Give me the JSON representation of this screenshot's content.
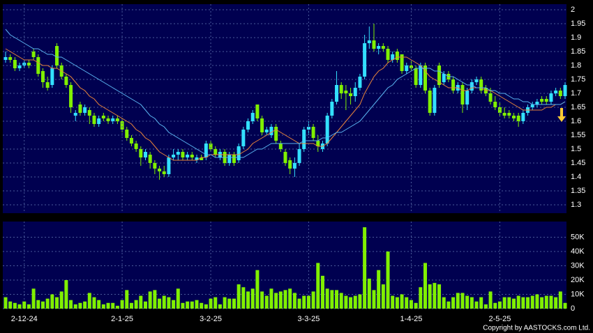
{
  "chart_data": [
    {
      "type": "candlestick",
      "up_color": "#33e0ff",
      "down_color": "#80f000",
      "grid": true,
      "ylim": [
        1.27,
        2.02
      ],
      "yticks": [
        1.3,
        1.35,
        1.4,
        1.45,
        1.5,
        1.55,
        1.6,
        1.65,
        1.7,
        1.75,
        1.8,
        1.85,
        1.9,
        1.95,
        2
      ],
      "ohlc": [
        [
          1.82,
          1.85,
          1.81,
          1.83
        ],
        [
          1.83,
          1.84,
          1.81,
          1.82
        ],
        [
          1.82,
          1.83,
          1.78,
          1.79
        ],
        [
          1.79,
          1.81,
          1.78,
          1.8
        ],
        [
          1.8,
          1.82,
          1.79,
          1.81
        ],
        [
          1.81,
          1.82,
          1.79,
          1.8
        ],
        [
          1.85,
          1.86,
          1.82,
          1.83
        ],
        [
          1.83,
          1.84,
          1.76,
          1.77
        ],
        [
          1.78,
          1.79,
          1.72,
          1.74
        ],
        [
          1.74,
          1.76,
          1.71,
          1.72
        ],
        [
          1.73,
          1.8,
          1.72,
          1.79
        ],
        [
          1.87,
          1.88,
          1.79,
          1.8
        ],
        [
          1.8,
          1.81,
          1.75,
          1.76
        ],
        [
          1.76,
          1.77,
          1.72,
          1.73
        ],
        [
          1.73,
          1.74,
          1.63,
          1.65
        ],
        [
          1.62,
          1.64,
          1.6,
          1.63
        ],
        [
          1.66,
          1.67,
          1.62,
          1.63
        ],
        [
          1.63,
          1.66,
          1.62,
          1.65
        ],
        [
          1.64,
          1.65,
          1.59,
          1.62
        ],
        [
          1.62,
          1.63,
          1.58,
          1.59
        ],
        [
          1.59,
          1.62,
          1.58,
          1.61
        ],
        [
          1.62,
          1.63,
          1.6,
          1.61
        ],
        [
          1.61,
          1.62,
          1.59,
          1.6
        ],
        [
          1.6,
          1.62,
          1.59,
          1.61
        ],
        [
          1.61,
          1.62,
          1.59,
          1.6
        ],
        [
          1.6,
          1.61,
          1.56,
          1.57
        ],
        [
          1.57,
          1.58,
          1.53,
          1.54
        ],
        [
          1.54,
          1.55,
          1.51,
          1.52
        ],
        [
          1.52,
          1.53,
          1.49,
          1.5
        ],
        [
          1.5,
          1.51,
          1.44,
          1.47
        ],
        [
          1.47,
          1.5,
          1.46,
          1.49
        ],
        [
          1.48,
          1.49,
          1.43,
          1.45
        ],
        [
          1.45,
          1.46,
          1.41,
          1.43
        ],
        [
          1.43,
          1.44,
          1.39,
          1.42
        ],
        [
          1.42,
          1.44,
          1.4,
          1.41
        ],
        [
          1.41,
          1.48,
          1.4,
          1.47
        ],
        [
          1.47,
          1.5,
          1.46,
          1.48
        ],
        [
          1.48,
          1.5,
          1.46,
          1.49
        ],
        [
          1.49,
          1.5,
          1.46,
          1.47
        ],
        [
          1.47,
          1.49,
          1.46,
          1.48
        ],
        [
          1.48,
          1.49,
          1.46,
          1.47
        ],
        [
          1.46,
          1.48,
          1.45,
          1.47
        ],
        [
          1.47,
          1.48,
          1.46,
          1.46
        ],
        [
          1.47,
          1.53,
          1.46,
          1.52
        ],
        [
          1.52,
          1.53,
          1.49,
          1.5
        ],
        [
          1.5,
          1.51,
          1.47,
          1.48
        ],
        [
          1.47,
          1.5,
          1.46,
          1.49
        ],
        [
          1.49,
          1.5,
          1.44,
          1.45
        ],
        [
          1.45,
          1.49,
          1.44,
          1.48
        ],
        [
          1.48,
          1.49,
          1.44,
          1.45
        ],
        [
          1.46,
          1.52,
          1.45,
          1.51
        ],
        [
          1.51,
          1.58,
          1.5,
          1.57
        ],
        [
          1.57,
          1.61,
          1.56,
          1.6
        ],
        [
          1.6,
          1.64,
          1.59,
          1.63
        ],
        [
          1.66,
          1.66,
          1.6,
          1.61
        ],
        [
          1.61,
          1.62,
          1.55,
          1.56
        ],
        [
          1.56,
          1.58,
          1.55,
          1.57
        ],
        [
          1.55,
          1.59,
          1.54,
          1.58
        ],
        [
          1.58,
          1.59,
          1.52,
          1.53
        ],
        [
          1.52,
          1.53,
          1.49,
          1.5
        ],
        [
          1.49,
          1.5,
          1.44,
          1.45
        ],
        [
          1.46,
          1.47,
          1.41,
          1.43
        ],
        [
          1.43,
          1.47,
          1.4,
          1.45
        ],
        [
          1.45,
          1.52,
          1.44,
          1.5
        ],
        [
          1.5,
          1.58,
          1.49,
          1.57
        ],
        [
          1.57,
          1.6,
          1.55,
          1.58
        ],
        [
          1.58,
          1.59,
          1.53,
          1.54
        ],
        [
          1.53,
          1.55,
          1.49,
          1.51
        ],
        [
          1.5,
          1.53,
          1.49,
          1.52
        ],
        [
          1.52,
          1.63,
          1.51,
          1.62
        ],
        [
          1.62,
          1.68,
          1.61,
          1.67
        ],
        [
          1.67,
          1.78,
          1.66,
          1.73
        ],
        [
          1.73,
          1.74,
          1.68,
          1.7
        ],
        [
          1.71,
          1.73,
          1.64,
          1.7
        ],
        [
          1.7,
          1.72,
          1.66,
          1.69
        ],
        [
          1.69,
          1.74,
          1.67,
          1.72
        ],
        [
          1.72,
          1.77,
          1.71,
          1.76
        ],
        [
          1.76,
          1.91,
          1.75,
          1.88
        ],
        [
          1.88,
          1.94,
          1.86,
          1.89
        ],
        [
          1.89,
          1.95,
          1.85,
          1.86
        ],
        [
          1.86,
          1.88,
          1.84,
          1.87
        ],
        [
          1.87,
          1.88,
          1.85,
          1.86
        ],
        [
          1.86,
          1.87,
          1.81,
          1.82
        ],
        [
          1.82,
          1.85,
          1.81,
          1.84
        ],
        [
          1.85,
          1.86,
          1.81,
          1.82
        ],
        [
          1.84,
          1.84,
          1.77,
          1.78
        ],
        [
          1.78,
          1.81,
          1.77,
          1.8
        ],
        [
          1.8,
          1.82,
          1.78,
          1.79
        ],
        [
          1.79,
          1.8,
          1.72,
          1.73
        ],
        [
          1.73,
          1.81,
          1.72,
          1.8
        ],
        [
          1.8,
          1.81,
          1.7,
          1.71
        ],
        [
          1.71,
          1.72,
          1.62,
          1.63
        ],
        [
          1.63,
          1.73,
          1.62,
          1.72
        ],
        [
          1.8,
          1.81,
          1.72,
          1.73
        ],
        [
          1.74,
          1.78,
          1.73,
          1.77
        ],
        [
          1.77,
          1.78,
          1.74,
          1.75
        ],
        [
          1.75,
          1.76,
          1.7,
          1.71
        ],
        [
          1.71,
          1.74,
          1.7,
          1.73
        ],
        [
          1.73,
          1.74,
          1.63,
          1.66
        ],
        [
          1.66,
          1.72,
          1.64,
          1.71
        ],
        [
          1.71,
          1.75,
          1.7,
          1.74
        ],
        [
          1.74,
          1.76,
          1.73,
          1.75
        ],
        [
          1.75,
          1.76,
          1.7,
          1.71
        ],
        [
          1.72,
          1.73,
          1.69,
          1.7
        ],
        [
          1.7,
          1.72,
          1.66,
          1.67
        ],
        [
          1.67,
          1.69,
          1.64,
          1.65
        ],
        [
          1.65,
          1.67,
          1.62,
          1.63
        ],
        [
          1.63,
          1.65,
          1.61,
          1.62
        ],
        [
          1.63,
          1.64,
          1.61,
          1.62
        ],
        [
          1.62,
          1.63,
          1.6,
          1.61
        ],
        [
          1.62,
          1.63,
          1.58,
          1.6
        ],
        [
          1.6,
          1.64,
          1.59,
          1.63
        ],
        [
          1.63,
          1.66,
          1.62,
          1.65
        ],
        [
          1.65,
          1.67,
          1.64,
          1.66
        ],
        [
          1.66,
          1.68,
          1.65,
          1.67
        ],
        [
          1.68,
          1.69,
          1.66,
          1.67
        ],
        [
          1.68,
          1.69,
          1.66,
          1.67
        ],
        [
          1.67,
          1.71,
          1.66,
          1.7
        ],
        [
          1.7,
          1.72,
          1.69,
          1.71
        ],
        [
          1.71,
          1.72,
          1.68,
          1.69
        ],
        [
          1.69,
          1.74,
          1.68,
          1.73
        ]
      ],
      "series": [
        {
          "color": "#e8843a",
          "values": [
            1.86,
            1.85,
            1.84,
            1.83,
            1.82,
            1.82,
            1.82,
            1.81,
            1.8,
            1.8,
            1.79,
            1.79,
            1.78,
            1.77,
            1.76,
            1.74,
            1.72,
            1.71,
            1.69,
            1.68,
            1.66,
            1.65,
            1.64,
            1.63,
            1.62,
            1.61,
            1.6,
            1.59,
            1.57,
            1.56,
            1.54,
            1.53,
            1.51,
            1.49,
            1.48,
            1.47,
            1.46,
            1.46,
            1.46,
            1.46,
            1.46,
            1.46,
            1.47,
            1.47,
            1.48,
            1.48,
            1.48,
            1.48,
            1.48,
            1.48,
            1.48,
            1.49,
            1.5,
            1.52,
            1.53,
            1.54,
            1.55,
            1.56,
            1.57,
            1.56,
            1.55,
            1.54,
            1.53,
            1.52,
            1.52,
            1.52,
            1.52,
            1.51,
            1.51,
            1.52,
            1.54,
            1.56,
            1.58,
            1.6,
            1.62,
            1.64,
            1.66,
            1.7,
            1.73,
            1.76,
            1.78,
            1.79,
            1.81,
            1.82,
            1.83,
            1.83,
            1.83,
            1.82,
            1.81,
            1.8,
            1.78,
            1.76,
            1.75,
            1.74,
            1.73,
            1.72,
            1.72,
            1.72,
            1.71,
            1.71,
            1.72,
            1.72,
            1.72,
            1.71,
            1.71,
            1.7,
            1.69,
            1.68,
            1.67,
            1.66,
            1.65,
            1.64,
            1.64,
            1.64,
            1.64,
            1.64,
            1.65,
            1.65,
            1.66,
            1.66,
            1.67
          ]
        },
        {
          "color": "#5ab4f0",
          "values": [
            1.93,
            1.91,
            1.9,
            1.89,
            1.88,
            1.87,
            1.86,
            1.86,
            1.85,
            1.84,
            1.84,
            1.83,
            1.83,
            1.82,
            1.81,
            1.8,
            1.79,
            1.78,
            1.77,
            1.76,
            1.75,
            1.74,
            1.73,
            1.72,
            1.71,
            1.7,
            1.69,
            1.68,
            1.67,
            1.66,
            1.64,
            1.62,
            1.61,
            1.59,
            1.58,
            1.56,
            1.55,
            1.54,
            1.53,
            1.52,
            1.51,
            1.5,
            1.49,
            1.48,
            1.48,
            1.47,
            1.47,
            1.47,
            1.47,
            1.47,
            1.47,
            1.47,
            1.48,
            1.49,
            1.5,
            1.5,
            1.51,
            1.52,
            1.52,
            1.52,
            1.52,
            1.52,
            1.52,
            1.52,
            1.53,
            1.53,
            1.53,
            1.53,
            1.54,
            1.54,
            1.55,
            1.56,
            1.56,
            1.57,
            1.58,
            1.59,
            1.6,
            1.62,
            1.64,
            1.66,
            1.68,
            1.7,
            1.72,
            1.73,
            1.75,
            1.76,
            1.77,
            1.78,
            1.79,
            1.79,
            1.79,
            1.79,
            1.78,
            1.78,
            1.77,
            1.76,
            1.76,
            1.75,
            1.74,
            1.73,
            1.73,
            1.72,
            1.72,
            1.72,
            1.71,
            1.71,
            1.7,
            1.7,
            1.69,
            1.68,
            1.68,
            1.67,
            1.67,
            1.66,
            1.66,
            1.66,
            1.66,
            1.66,
            1.66,
            1.66,
            1.67
          ]
        }
      ]
    },
    {
      "type": "bar",
      "color": "#80f000",
      "grid": true,
      "ylim": [
        0,
        61000
      ],
      "yticks": [
        0,
        {
          "value": 10000,
          "label": "10K"
        },
        {
          "value": 20000,
          "label": "20K"
        },
        {
          "value": 30000,
          "label": "30K"
        },
        {
          "value": 40000,
          "label": "40K"
        },
        {
          "value": 50000,
          "label": "50K"
        }
      ],
      "categories": [
        null,
        null,
        null,
        null,
        "2-12-24",
        null,
        null,
        null,
        null,
        null,
        null,
        null,
        null,
        null,
        null,
        null,
        null,
        null,
        null,
        null,
        null,
        null,
        null,
        null,
        null,
        "2-1-25",
        null,
        null,
        null,
        null,
        null,
        null,
        null,
        null,
        null,
        null,
        null,
        null,
        null,
        null,
        null,
        null,
        null,
        null,
        "3-2-25",
        null,
        null,
        null,
        null,
        null,
        null,
        null,
        null,
        null,
        null,
        null,
        null,
        null,
        null,
        null,
        null,
        null,
        null,
        null,
        null,
        "3-3-25",
        null,
        null,
        null,
        null,
        null,
        null,
        null,
        null,
        null,
        null,
        null,
        null,
        null,
        null,
        null,
        null,
        null,
        null,
        null,
        null,
        null,
        "1-4-25",
        null,
        null,
        null,
        null,
        null,
        null,
        null,
        null,
        null,
        null,
        null,
        null,
        null,
        null,
        null,
        null,
        null,
        null,
        "2-5-25",
        null,
        null,
        null,
        null,
        null,
        null,
        null,
        null,
        null,
        null,
        null,
        null,
        null,
        null
      ],
      "values": [
        8000,
        5000,
        4000,
        3000,
        5000,
        3000,
        14000,
        6000,
        5000,
        7000,
        10000,
        8000,
        12000,
        20000,
        6000,
        3000,
        4000,
        5000,
        11000,
        8000,
        6000,
        3000,
        4000,
        4000,
        2000,
        6000,
        13000,
        4000,
        6000,
        9000,
        5000,
        12000,
        13000,
        7000,
        9000,
        8000,
        6000,
        14000,
        4000,
        5000,
        5000,
        6000,
        4000,
        3000,
        7000,
        8000,
        3000,
        8000,
        7000,
        7000,
        17000,
        15000,
        12000,
        14000,
        27000,
        12000,
        9000,
        14000,
        11000,
        12000,
        13000,
        14000,
        11000,
        7000,
        9000,
        9000,
        12000,
        32000,
        23000,
        14000,
        13000,
        13000,
        11000,
        9000,
        8000,
        9000,
        10000,
        57000,
        21000,
        13000,
        27000,
        17000,
        40000,
        9000,
        8000,
        10000,
        8000,
        6000,
        4000,
        15000,
        32000,
        17000,
        18000,
        17000,
        8000,
        5000,
        8000,
        11000,
        11000,
        9000,
        8000,
        5000,
        8000,
        3000,
        12000,
        4000,
        5000,
        8000,
        8000,
        7000,
        9000,
        8000,
        8000,
        9000,
        10000,
        8000,
        9000,
        9000,
        8000,
        12000,
        4000
      ]
    }
  ],
  "footer": "Copyright by AASTOCKS.com Ltd."
}
